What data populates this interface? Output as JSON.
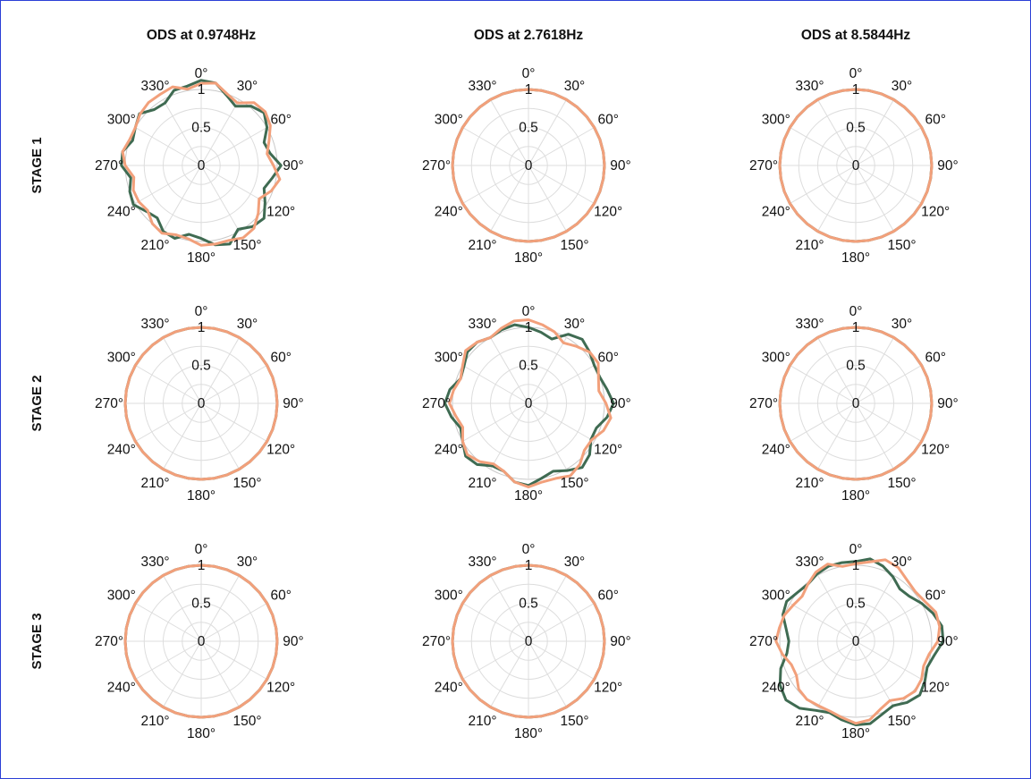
{
  "colors": {
    "series_dark": "#3f6b52",
    "series_light": "#f2a07b",
    "frame_border": "#2b3fd6"
  },
  "column_titles": [
    "ODS  at  0.9748Hz",
    "ODS  at  2.7618Hz",
    "ODS  at  8.5844Hz"
  ],
  "row_labels": [
    "STAGE 1",
    "STAGE 2",
    "STAGE 3"
  ],
  "chart_data": {
    "type": "polar",
    "angle_direction": "clockwise",
    "zero_location": "top",
    "angle_ticks": [
      0,
      30,
      60,
      90,
      120,
      150,
      180,
      210,
      240,
      270,
      300,
      330
    ],
    "angle_tick_labels": [
      "0°",
      "30°",
      "60°",
      "90°",
      "120°",
      "150°",
      "180°",
      "210°",
      "240°",
      "270°",
      "300°",
      "330°"
    ],
    "radial_ticks": [
      0,
      0.5,
      1
    ],
    "radial_tick_labels": [
      "0",
      "0.5",
      "1"
    ],
    "rlim": [
      0,
      1
    ],
    "grid": true,
    "theta_deg": [
      0,
      10,
      20,
      30,
      40,
      50,
      60,
      70,
      80,
      90,
      100,
      110,
      120,
      130,
      140,
      150,
      160,
      170,
      180,
      190,
      200,
      210,
      220,
      230,
      240,
      250,
      260,
      270,
      280,
      290,
      300,
      310,
      320,
      330,
      340,
      350
    ],
    "panels": [
      {
        "row": 0,
        "col": 0,
        "series": [
          {
            "color": "dark",
            "r": [
              1.12,
              1.1,
              0.98,
              0.9,
              1.02,
              1.08,
              1.0,
              0.88,
              0.92,
              1.05,
              0.95,
              0.88,
              0.97,
              1.08,
              1.05,
              0.97,
              1.1,
              1.06,
              0.96,
              0.92,
              1.02,
              1.0,
              0.9,
              0.94,
              1.03,
              1.0,
              0.94,
              1.05,
              1.05,
              0.96,
              1.0,
              1.06,
              0.96,
              0.95,
              1.05,
              1.06
            ]
          },
          {
            "color": "light",
            "r": [
              1.08,
              1.1,
              1.0,
              0.95,
              1.08,
              1.1,
              1.05,
              0.95,
              0.88,
              0.95,
              1.05,
              0.98,
              0.88,
              0.98,
              1.08,
              1.1,
              1.05,
              1.05,
              1.05,
              0.98,
              0.97,
              1.03,
              1.0,
              0.92,
              0.95,
              0.95,
              0.9,
              1.0,
              1.05,
              1.0,
              1.0,
              1.05,
              1.08,
              1.08,
              1.1,
              1.02
            ]
          }
        ]
      },
      {
        "row": 0,
        "col": 1,
        "series": [
          {
            "color": "dark",
            "r": [
              1,
              1,
              1,
              1,
              1,
              1,
              1,
              1,
              1,
              1,
              1,
              1,
              1,
              1,
              1,
              1,
              1,
              1,
              1,
              1,
              1,
              1,
              1,
              1,
              1,
              1,
              1,
              1,
              1,
              1,
              1,
              1,
              1,
              1,
              1,
              1
            ]
          },
          {
            "color": "light",
            "r": [
              1,
              1,
              1,
              1,
              1,
              1,
              1,
              1,
              1,
              1,
              1,
              1,
              1,
              1,
              1,
              1,
              1,
              1,
              1,
              1,
              1,
              1,
              1,
              1,
              1,
              1,
              1,
              1,
              1,
              1,
              1,
              1,
              1,
              1,
              1,
              1
            ]
          }
        ]
      },
      {
        "row": 0,
        "col": 2,
        "series": [
          {
            "color": "dark",
            "r": [
              1,
              1,
              1,
              1,
              1,
              1,
              1,
              1,
              1,
              1,
              1,
              1,
              1,
              1,
              1,
              1,
              1,
              1,
              1,
              1,
              1,
              1,
              1,
              1,
              1,
              1,
              1,
              1,
              1,
              1,
              1,
              1,
              1,
              1,
              1,
              1
            ]
          },
          {
            "color": "light",
            "r": [
              1,
              1,
              1,
              1,
              1,
              1,
              1,
              1,
              1,
              1,
              1,
              1,
              1,
              1,
              1,
              1,
              1,
              1,
              1,
              1,
              1,
              1,
              1,
              1,
              1,
              1,
              1,
              1,
              1,
              1,
              1,
              1,
              1,
              1,
              1,
              1
            ]
          }
        ]
      },
      {
        "row": 1,
        "col": 0,
        "series": [
          {
            "color": "dark",
            "r": [
              1,
              1,
              1,
              1,
              1,
              1,
              1,
              1,
              1,
              1,
              1,
              1,
              1,
              1,
              1,
              1,
              1,
              1,
              1,
              1,
              1,
              1,
              1,
              1,
              1,
              1,
              1,
              1,
              1,
              1,
              1,
              1,
              1,
              1,
              1,
              1
            ]
          },
          {
            "color": "light",
            "r": [
              1,
              1,
              1,
              1,
              1,
              1,
              1,
              1,
              1,
              1,
              1,
              1,
              1,
              1,
              1,
              1,
              1,
              1,
              1,
              1,
              1,
              1,
              1,
              1,
              1,
              1,
              1,
              1,
              1,
              1,
              1,
              1,
              1,
              1,
              1,
              1
            ]
          }
        ]
      },
      {
        "row": 1,
        "col": 1,
        "series": [
          {
            "color": "dark",
            "r": [
              1.0,
              0.95,
              0.9,
              1.05,
              1.1,
              1.05,
              1.0,
              1.0,
              1.05,
              1.12,
              1.05,
              0.95,
              0.95,
              1.05,
              1.1,
              1.02,
              0.95,
              1.0,
              1.08,
              1.05,
              0.95,
              0.95,
              1.05,
              1.08,
              1.0,
              0.95,
              1.03,
              1.1,
              1.05,
              0.95,
              0.98,
              1.05,
              1.05,
              1.0,
              1.03,
              1.05
            ]
          },
          {
            "color": "light",
            "r": [
              1.1,
              1.05,
              1.0,
              0.92,
              0.98,
              1.05,
              1.06,
              0.98,
              0.94,
              1.02,
              1.1,
              1.05,
              0.96,
              0.96,
              1.05,
              1.1,
              1.05,
              1.05,
              1.1,
              1.05,
              0.95,
              0.92,
              1.0,
              1.05,
              1.0,
              0.92,
              0.97,
              1.04,
              1.0,
              0.95,
              1.0,
              1.08,
              1.05,
              1.0,
              1.05,
              1.1
            ]
          }
        ]
      },
      {
        "row": 1,
        "col": 2,
        "series": [
          {
            "color": "dark",
            "r": [
              1,
              1,
              1,
              1,
              1,
              1,
              1,
              1,
              1,
              1,
              1,
              1,
              1,
              1,
              1,
              1,
              1,
              1,
              1,
              1,
              1,
              1,
              1,
              1,
              1,
              1,
              1,
              1,
              1,
              1,
              1,
              1,
              1,
              1,
              1,
              1
            ]
          },
          {
            "color": "light",
            "r": [
              1,
              1,
              1,
              1,
              1,
              1,
              1,
              1,
              1,
              1,
              1,
              1,
              1,
              1,
              1,
              1,
              1,
              1,
              1,
              1,
              1,
              1,
              1,
              1,
              1,
              1,
              1,
              1,
              1,
              1,
              1,
              1,
              1,
              1,
              1,
              1
            ]
          }
        ]
      },
      {
        "row": 2,
        "col": 0,
        "series": [
          {
            "color": "dark",
            "r": [
              1,
              1,
              1,
              1,
              1,
              1,
              1,
              1,
              1,
              1,
              1,
              1,
              1,
              1,
              1,
              1,
              1,
              1,
              1,
              1,
              1,
              1,
              1,
              1,
              1,
              1,
              1,
              1,
              1,
              1,
              1,
              1,
              1,
              1,
              1,
              1
            ]
          },
          {
            "color": "light",
            "r": [
              1,
              1,
              1,
              1,
              1,
              1,
              1,
              1,
              1,
              1,
              1,
              1,
              1,
              1,
              1,
              1,
              1,
              1,
              1,
              1,
              1,
              1,
              1,
              1,
              1,
              1,
              1,
              1,
              1,
              1,
              1,
              1,
              1,
              1,
              1,
              1
            ]
          }
        ]
      },
      {
        "row": 2,
        "col": 1,
        "series": [
          {
            "color": "dark",
            "r": [
              1,
              1,
              1,
              1,
              1,
              1,
              1,
              1,
              1,
              1,
              1,
              1,
              1,
              1,
              1,
              1,
              1,
              1,
              1,
              1,
              1,
              1,
              1,
              1,
              1,
              1,
              1,
              1,
              1,
              1,
              1,
              1,
              1,
              1,
              1,
              1
            ]
          },
          {
            "color": "light",
            "r": [
              1,
              1,
              1,
              1,
              1,
              1,
              1,
              1,
              1,
              1,
              1,
              1,
              1,
              1,
              1,
              1,
              1,
              1,
              1,
              1,
              1,
              1,
              1,
              1,
              1,
              1,
              1,
              1,
              1,
              1,
              1,
              1,
              1,
              1,
              1,
              1
            ]
          }
        ]
      },
      {
        "row": 2,
        "col": 2,
        "series": [
          {
            "color": "dark",
            "r": [
              1.05,
              1.1,
              1.05,
              0.98,
              0.9,
              0.92,
              1.0,
              1.08,
              1.15,
              1.15,
              1.05,
              1.0,
              1.05,
              1.1,
              1.05,
              0.98,
              1.02,
              1.1,
              1.1,
              1.05,
              1.0,
              1.05,
              1.15,
              1.2,
              1.15,
              1.05,
              0.92,
              0.88,
              0.93,
              1.02,
              1.05,
              1.0,
              0.98,
              1.02,
              1.05,
              1.05
            ]
          },
          {
            "color": "light",
            "r": [
              1.02,
              1.06,
              1.14,
              1.12,
              1.05,
              1.02,
              1.05,
              1.12,
              1.12,
              1.08,
              0.98,
              0.95,
              1.0,
              1.02,
              0.98,
              0.9,
              0.95,
              1.05,
              1.08,
              1.02,
              0.98,
              0.98,
              1.0,
              0.98,
              0.9,
              0.9,
              0.98,
              1.05,
              1.02,
              1.0,
              0.95,
              0.92,
              0.98,
              1.05,
              1.08,
              1.0
            ]
          }
        ]
      }
    ]
  }
}
